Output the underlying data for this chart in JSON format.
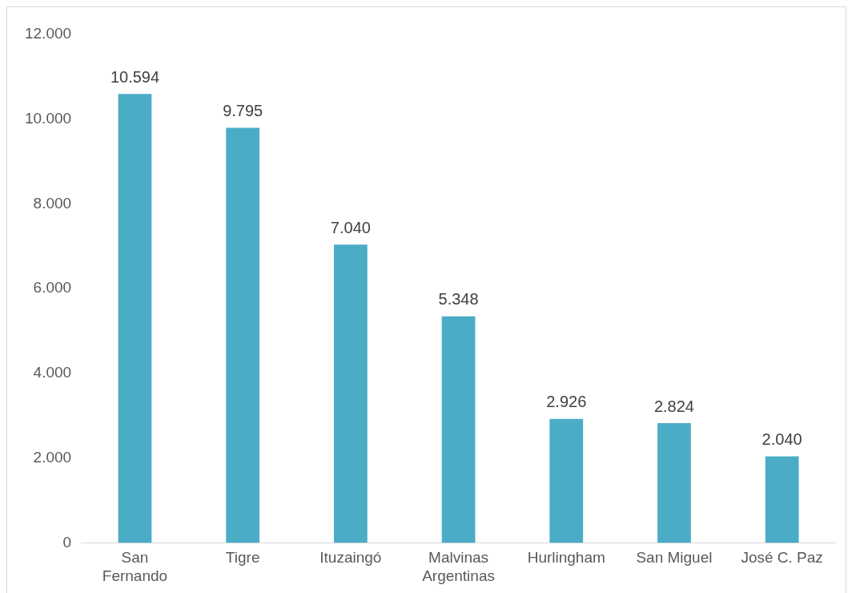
{
  "chart_data": {
    "type": "bar",
    "categories": [
      "San Fernando",
      "Tigre",
      "Ituzaingó",
      "Malvinas Argentinas",
      "Hurlingham",
      "San Miguel",
      "José C. Paz"
    ],
    "values": [
      10594,
      9795,
      7040,
      5348,
      2926,
      2824,
      2040
    ],
    "value_labels": [
      "10.594",
      "9.795",
      "7.040",
      "5.348",
      "2.926",
      "2.824",
      "2.040"
    ],
    "color": "#4bacc6",
    "ylim": [
      0,
      12000
    ],
    "yticks": [
      {
        "value": 0,
        "label": "0"
      },
      {
        "value": 2000,
        "label": "2.000"
      },
      {
        "value": 4000,
        "label": "4.000"
      },
      {
        "value": 6000,
        "label": "6.000"
      },
      {
        "value": 8000,
        "label": "8.000"
      },
      {
        "value": 10000,
        "label": "10.000"
      },
      {
        "value": 12000,
        "label": "12.000"
      }
    ],
    "grid": false,
    "legend": false
  }
}
